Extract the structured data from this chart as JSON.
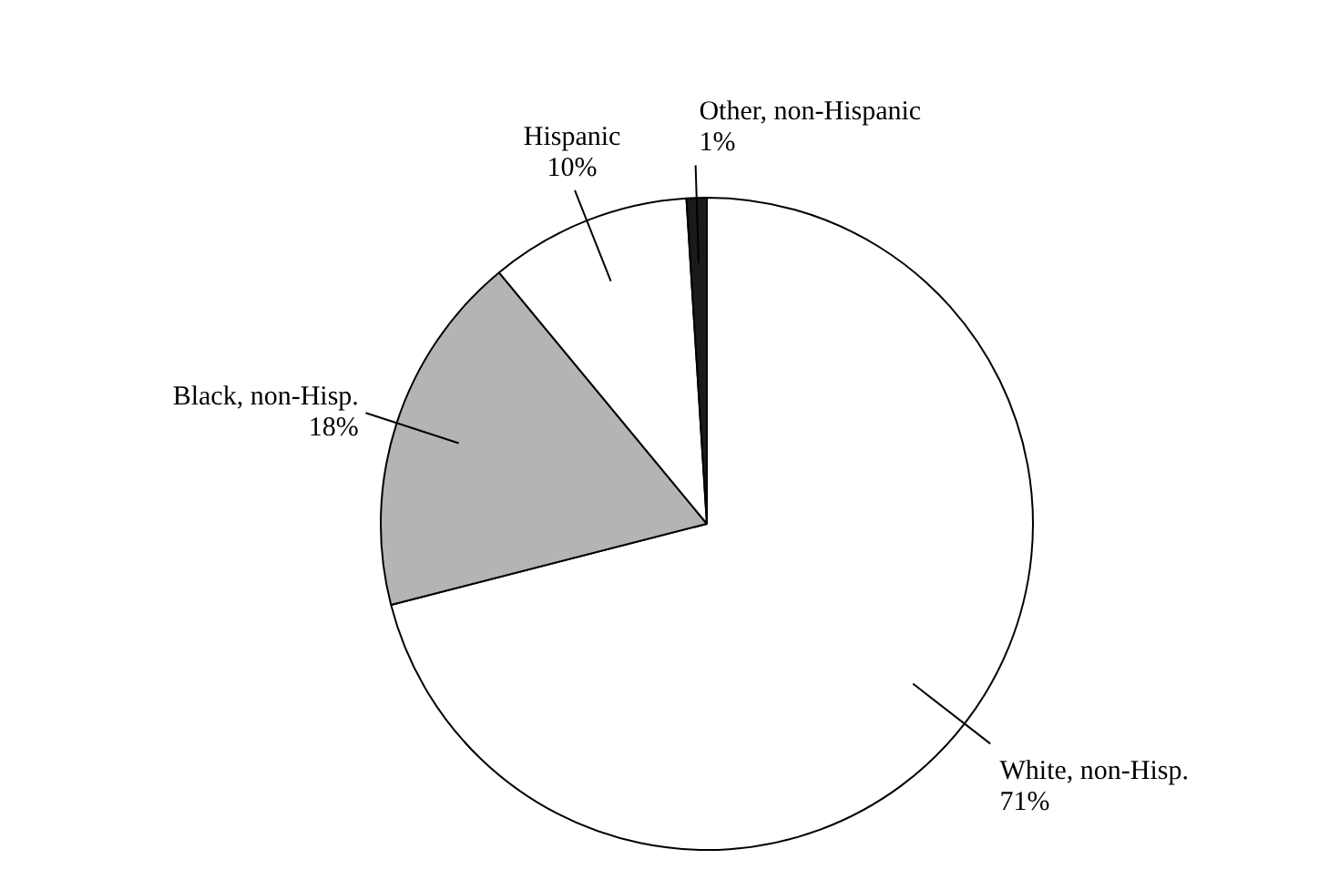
{
  "chart_data": {
    "type": "pie",
    "categories": [
      "White, non-Hisp.",
      "Black, non-Hisp.",
      "Hispanic",
      "Other, non-Hispanic"
    ],
    "values": [
      71,
      18,
      10,
      1
    ],
    "value_labels": [
      "71%",
      "18%",
      "10%",
      "1%"
    ],
    "colors": [
      "#ffffff",
      "#b4b4b4",
      "#ffffff",
      "#1a1a1a"
    ],
    "legend": false
  }
}
